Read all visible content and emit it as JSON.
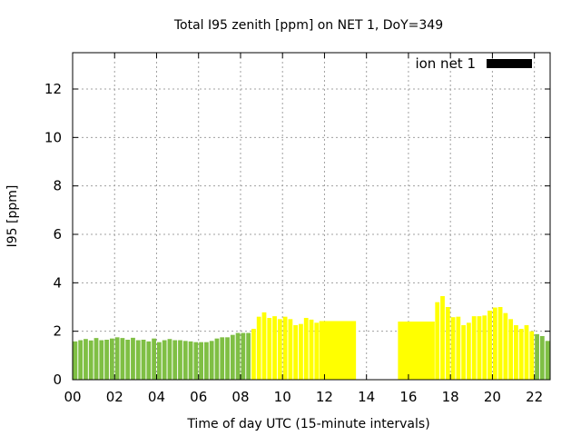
{
  "chart_data": {
    "type": "bar",
    "title": "Total I95 zenith [ppm] on NET 1, DoY=349",
    "xlabel": "Time of day UTC (15-minute intervals)",
    "ylabel": "I95 [ppm]",
    "xlim": [
      0,
      22.75
    ],
    "ylim": [
      0,
      13.5
    ],
    "grid": true,
    "legend_position": "top-right",
    "x_ticks": [
      {
        "value": 0,
        "label": "00"
      },
      {
        "value": 2,
        "label": "02"
      },
      {
        "value": 4,
        "label": "04"
      },
      {
        "value": 6,
        "label": "06"
      },
      {
        "value": 8,
        "label": "08"
      },
      {
        "value": 10,
        "label": "10"
      },
      {
        "value": 12,
        "label": "12"
      },
      {
        "value": 14,
        "label": "14"
      },
      {
        "value": 16,
        "label": "16"
      },
      {
        "value": 18,
        "label": "18"
      },
      {
        "value": 20,
        "label": "20"
      },
      {
        "value": 22,
        "label": "22"
      }
    ],
    "y_ticks": [
      {
        "value": 0,
        "label": "0"
      },
      {
        "value": 2,
        "label": "2"
      },
      {
        "value": 4,
        "label": "4"
      },
      {
        "value": 6,
        "label": "6"
      },
      {
        "value": 8,
        "label": "8"
      },
      {
        "value": 10,
        "label": "10"
      },
      {
        "value": 12,
        "label": "12"
      }
    ],
    "legend": [
      {
        "name": "ion net 1",
        "color": "#000000"
      }
    ],
    "colors": {
      "green": "#7fbf44",
      "yellow": "#ffff00"
    },
    "bars": [
      {
        "x0": 0.0,
        "x1": 0.25,
        "value": 1.58,
        "color": "green"
      },
      {
        "x0": 0.25,
        "x1": 0.5,
        "value": 1.63,
        "color": "green"
      },
      {
        "x0": 0.5,
        "x1": 0.75,
        "value": 1.68,
        "color": "green"
      },
      {
        "x0": 0.75,
        "x1": 1.0,
        "value": 1.62,
        "color": "green"
      },
      {
        "x0": 1.0,
        "x1": 1.25,
        "value": 1.72,
        "color": "green"
      },
      {
        "x0": 1.25,
        "x1": 1.5,
        "value": 1.63,
        "color": "green"
      },
      {
        "x0": 1.5,
        "x1": 1.75,
        "value": 1.65,
        "color": "green"
      },
      {
        "x0": 1.75,
        "x1": 2.0,
        "value": 1.7,
        "color": "green"
      },
      {
        "x0": 2.0,
        "x1": 2.25,
        "value": 1.75,
        "color": "green"
      },
      {
        "x0": 2.25,
        "x1": 2.5,
        "value": 1.72,
        "color": "green"
      },
      {
        "x0": 2.5,
        "x1": 2.75,
        "value": 1.65,
        "color": "green"
      },
      {
        "x0": 2.75,
        "x1": 3.0,
        "value": 1.73,
        "color": "green"
      },
      {
        "x0": 3.0,
        "x1": 3.25,
        "value": 1.63,
        "color": "green"
      },
      {
        "x0": 3.25,
        "x1": 3.5,
        "value": 1.65,
        "color": "green"
      },
      {
        "x0": 3.5,
        "x1": 3.75,
        "value": 1.58,
        "color": "green"
      },
      {
        "x0": 3.75,
        "x1": 4.0,
        "value": 1.7,
        "color": "green"
      },
      {
        "x0": 4.0,
        "x1": 4.25,
        "value": 1.55,
        "color": "green"
      },
      {
        "x0": 4.25,
        "x1": 4.5,
        "value": 1.63,
        "color": "green"
      },
      {
        "x0": 4.5,
        "x1": 4.75,
        "value": 1.68,
        "color": "green"
      },
      {
        "x0": 4.75,
        "x1": 5.0,
        "value": 1.63,
        "color": "green"
      },
      {
        "x0": 5.0,
        "x1": 5.25,
        "value": 1.63,
        "color": "green"
      },
      {
        "x0": 5.25,
        "x1": 5.5,
        "value": 1.6,
        "color": "green"
      },
      {
        "x0": 5.5,
        "x1": 5.75,
        "value": 1.58,
        "color": "green"
      },
      {
        "x0": 5.75,
        "x1": 6.0,
        "value": 1.55,
        "color": "green"
      },
      {
        "x0": 6.0,
        "x1": 6.25,
        "value": 1.55,
        "color": "green"
      },
      {
        "x0": 6.25,
        "x1": 6.5,
        "value": 1.55,
        "color": "green"
      },
      {
        "x0": 6.5,
        "x1": 6.75,
        "value": 1.6,
        "color": "green"
      },
      {
        "x0": 6.75,
        "x1": 7.0,
        "value": 1.7,
        "color": "green"
      },
      {
        "x0": 7.0,
        "x1": 7.25,
        "value": 1.75,
        "color": "green"
      },
      {
        "x0": 7.25,
        "x1": 7.5,
        "value": 1.75,
        "color": "green"
      },
      {
        "x0": 7.5,
        "x1": 7.75,
        "value": 1.85,
        "color": "green"
      },
      {
        "x0": 7.75,
        "x1": 8.0,
        "value": 1.93,
        "color": "green"
      },
      {
        "x0": 8.0,
        "x1": 8.25,
        "value": 1.93,
        "color": "green"
      },
      {
        "x0": 8.25,
        "x1": 8.5,
        "value": 1.93,
        "color": "green"
      },
      {
        "x0": 8.5,
        "x1": 8.75,
        "value": 2.1,
        "color": "yellow"
      },
      {
        "x0": 8.75,
        "x1": 9.0,
        "value": 2.6,
        "color": "yellow"
      },
      {
        "x0": 9.0,
        "x1": 9.25,
        "value": 2.78,
        "color": "yellow"
      },
      {
        "x0": 9.25,
        "x1": 9.5,
        "value": 2.55,
        "color": "yellow"
      },
      {
        "x0": 9.5,
        "x1": 9.75,
        "value": 2.62,
        "color": "yellow"
      },
      {
        "x0": 9.75,
        "x1": 10.0,
        "value": 2.5,
        "color": "yellow"
      },
      {
        "x0": 10.0,
        "x1": 10.25,
        "value": 2.6,
        "color": "yellow"
      },
      {
        "x0": 10.25,
        "x1": 10.5,
        "value": 2.5,
        "color": "yellow"
      },
      {
        "x0": 10.5,
        "x1": 10.75,
        "value": 2.25,
        "color": "yellow"
      },
      {
        "x0": 10.75,
        "x1": 11.0,
        "value": 2.3,
        "color": "yellow"
      },
      {
        "x0": 11.0,
        "x1": 11.25,
        "value": 2.55,
        "color": "yellow"
      },
      {
        "x0": 11.25,
        "x1": 11.5,
        "value": 2.48,
        "color": "yellow"
      },
      {
        "x0": 11.5,
        "x1": 11.75,
        "value": 2.35,
        "color": "yellow"
      },
      {
        "x0": 11.75,
        "x1": 13.5,
        "value": 2.42,
        "color": "yellow"
      },
      {
        "x0": 15.5,
        "x1": 17.25,
        "value": 2.4,
        "color": "yellow"
      },
      {
        "x0": 17.25,
        "x1": 17.5,
        "value": 3.2,
        "color": "yellow"
      },
      {
        "x0": 17.5,
        "x1": 17.75,
        "value": 3.45,
        "color": "yellow"
      },
      {
        "x0": 17.75,
        "x1": 18.0,
        "value": 3.0,
        "color": "yellow"
      },
      {
        "x0": 18.0,
        "x1": 18.25,
        "value": 2.58,
        "color": "yellow"
      },
      {
        "x0": 18.25,
        "x1": 18.5,
        "value": 2.6,
        "color": "yellow"
      },
      {
        "x0": 18.5,
        "x1": 18.75,
        "value": 2.25,
        "color": "yellow"
      },
      {
        "x0": 18.75,
        "x1": 19.0,
        "value": 2.35,
        "color": "yellow"
      },
      {
        "x0": 19.0,
        "x1": 19.25,
        "value": 2.62,
        "color": "yellow"
      },
      {
        "x0": 19.25,
        "x1": 19.5,
        "value": 2.62,
        "color": "yellow"
      },
      {
        "x0": 19.5,
        "x1": 19.75,
        "value": 2.65,
        "color": "yellow"
      },
      {
        "x0": 19.75,
        "x1": 20.0,
        "value": 2.85,
        "color": "yellow"
      },
      {
        "x0": 20.0,
        "x1": 20.25,
        "value": 2.98,
        "color": "yellow"
      },
      {
        "x0": 20.25,
        "x1": 20.5,
        "value": 3.0,
        "color": "yellow"
      },
      {
        "x0": 20.5,
        "x1": 20.75,
        "value": 2.75,
        "color": "yellow"
      },
      {
        "x0": 20.75,
        "x1": 21.0,
        "value": 2.5,
        "color": "yellow"
      },
      {
        "x0": 21.0,
        "x1": 21.25,
        "value": 2.25,
        "color": "yellow"
      },
      {
        "x0": 21.25,
        "x1": 21.5,
        "value": 2.1,
        "color": "yellow"
      },
      {
        "x0": 21.5,
        "x1": 21.75,
        "value": 2.25,
        "color": "yellow"
      },
      {
        "x0": 21.75,
        "x1": 22.0,
        "value": 2.0,
        "color": "yellow"
      },
      {
        "x0": 22.0,
        "x1": 22.25,
        "value": 1.88,
        "color": "green"
      },
      {
        "x0": 22.25,
        "x1": 22.5,
        "value": 1.8,
        "color": "green"
      },
      {
        "x0": 22.5,
        "x1": 22.75,
        "value": 1.6,
        "color": "green"
      }
    ]
  }
}
